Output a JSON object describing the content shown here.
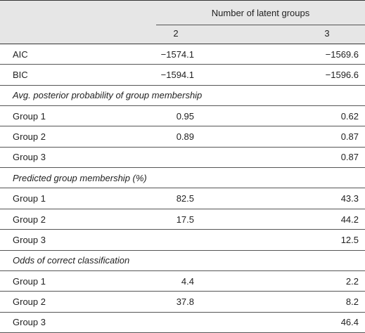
{
  "table": {
    "spanner": "Number of latent groups",
    "columns": [
      "2",
      "3"
    ],
    "rows": [
      {
        "label": "AIC",
        "values": [
          "−1574.1",
          "−1569.6"
        ]
      },
      {
        "label": "BIC",
        "values": [
          "−1594.1",
          "−1596.6"
        ]
      },
      {
        "section": "Avg. posterior probability of group membership"
      },
      {
        "label": "Group 1",
        "values": [
          "0.95",
          "0.62"
        ]
      },
      {
        "label": "Group 2",
        "values": [
          "0.89",
          "0.87"
        ]
      },
      {
        "label": "Group 3",
        "values": [
          null,
          "0.87"
        ]
      },
      {
        "section": "Predicted group membership (%)"
      },
      {
        "label": "Group 1",
        "values": [
          "82.5",
          "43.3"
        ]
      },
      {
        "label": "Group 2",
        "values": [
          "17.5",
          "44.2"
        ]
      },
      {
        "label": "Group 3",
        "values": [
          null,
          "12.5"
        ]
      },
      {
        "section": "Odds of correct classification"
      },
      {
        "label": "Group 1",
        "values": [
          "4.4",
          "2.2"
        ]
      },
      {
        "label": "Group 2",
        "values": [
          "37.8",
          "8.2"
        ]
      },
      {
        "label": "Group 3",
        "values": [
          null,
          "46.4"
        ]
      }
    ]
  }
}
